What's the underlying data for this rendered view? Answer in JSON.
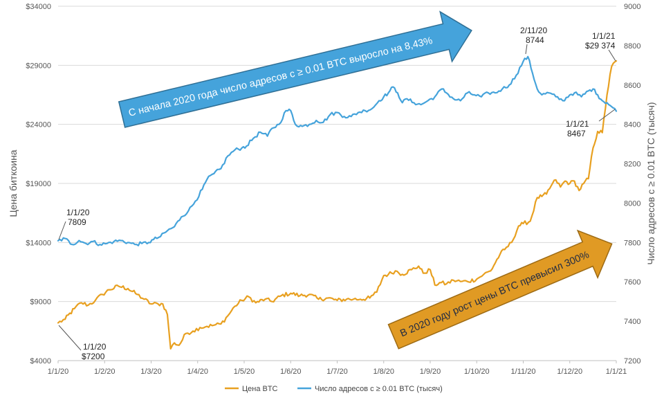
{
  "chart_data": {
    "type": "line",
    "y_left_label": "Цена биткоина",
    "y_right_label": "Число адресов с ≥ 0.01 BTC (тысяч)",
    "y_left_range": [
      4000,
      34000
    ],
    "y_right_range": [
      7200,
      9000
    ],
    "y_left_ticks": [
      "$4000",
      "$9000",
      "$14000",
      "$19000",
      "$24000",
      "$29000",
      "$34000"
    ],
    "y_right_ticks": [
      "7200",
      "7400",
      "7600",
      "7800",
      "8000",
      "8200",
      "8400",
      "8600",
      "8800",
      "9000"
    ],
    "x_ticks": [
      "1/1/20",
      "1/2/20",
      "1/3/20",
      "1/4/20",
      "1/5/20",
      "1/6/20",
      "1/7/20",
      "1/8/20",
      "1/9/20",
      "1/10/20",
      "1/11/20",
      "1/12/20",
      "1/1/21"
    ],
    "series": [
      {
        "name": "Цена BTC",
        "axis": "left",
        "color": "#E8A020",
        "points": [
          [
            0,
            7200
          ],
          [
            0.15,
            7500
          ],
          [
            0.35,
            8400
          ],
          [
            0.5,
            8900
          ],
          [
            0.65,
            8700
          ],
          [
            0.8,
            9100
          ],
          [
            0.95,
            9600
          ],
          [
            1.1,
            10000
          ],
          [
            1.3,
            10300
          ],
          [
            1.5,
            10100
          ],
          [
            1.7,
            9600
          ],
          [
            1.85,
            9200
          ],
          [
            2.0,
            8800
          ],
          [
            2.15,
            8800
          ],
          [
            2.25,
            8800
          ],
          [
            2.35,
            7900
          ],
          [
            2.42,
            5000
          ],
          [
            2.5,
            5500
          ],
          [
            2.6,
            5300
          ],
          [
            2.75,
            6300
          ],
          [
            2.9,
            6500
          ],
          [
            3.05,
            6800
          ],
          [
            3.2,
            6900
          ],
          [
            3.35,
            7000
          ],
          [
            3.5,
            7100
          ],
          [
            3.65,
            7800
          ],
          [
            3.8,
            8600
          ],
          [
            3.95,
            9100
          ],
          [
            4.1,
            9400
          ],
          [
            4.25,
            8900
          ],
          [
            4.45,
            9200
          ],
          [
            4.6,
            9000
          ],
          [
            4.8,
            9500
          ],
          [
            5.0,
            9700
          ],
          [
            5.2,
            9500
          ],
          [
            5.4,
            9600
          ],
          [
            5.6,
            9200
          ],
          [
            5.8,
            9300
          ],
          [
            6.0,
            9100
          ],
          [
            6.2,
            9200
          ],
          [
            6.35,
            9200
          ],
          [
            6.5,
            9200
          ],
          [
            6.7,
            9300
          ],
          [
            6.85,
            9800
          ],
          [
            7.0,
            11200
          ],
          [
            7.1,
            11300
          ],
          [
            7.25,
            11600
          ],
          [
            7.4,
            11300
          ],
          [
            7.6,
            11700
          ],
          [
            7.75,
            12000
          ],
          [
            7.85,
            11400
          ],
          [
            8.0,
            11700
          ],
          [
            8.1,
            10400
          ],
          [
            8.2,
            10600
          ],
          [
            8.35,
            10500
          ],
          [
            8.5,
            10800
          ],
          [
            8.65,
            10700
          ],
          [
            8.8,
            10700
          ],
          [
            9.0,
            10900
          ],
          [
            9.15,
            11300
          ],
          [
            9.3,
            11600
          ],
          [
            9.5,
            13000
          ],
          [
            9.6,
            13400
          ],
          [
            9.75,
            14000
          ],
          [
            9.9,
            15400
          ],
          [
            10.0,
            15600
          ],
          [
            10.15,
            15800
          ],
          [
            10.3,
            17800
          ],
          [
            10.4,
            17900
          ],
          [
            10.5,
            18100
          ],
          [
            10.6,
            18800
          ],
          [
            10.7,
            19300
          ],
          [
            10.8,
            18700
          ],
          [
            10.9,
            19200
          ],
          [
            11.0,
            19000
          ],
          [
            11.1,
            19200
          ],
          [
            11.2,
            18400
          ],
          [
            11.3,
            19000
          ],
          [
            11.4,
            19400
          ],
          [
            11.5,
            22000
          ],
          [
            11.6,
            23400
          ],
          [
            11.7,
            23300
          ],
          [
            11.8,
            26500
          ],
          [
            11.9,
            28900
          ],
          [
            12.0,
            29374
          ]
        ]
      },
      {
        "name": "Число адресов с ≥ 0.01 BTC (тысяч)",
        "axis": "right",
        "color": "#45A3DB",
        "points": [
          [
            0,
            7809
          ],
          [
            0.15,
            7820
          ],
          [
            0.3,
            7790
          ],
          [
            0.45,
            7810
          ],
          [
            0.6,
            7795
          ],
          [
            0.75,
            7805
          ],
          [
            0.9,
            7790
          ],
          [
            1.05,
            7795
          ],
          [
            1.2,
            7805
          ],
          [
            1.35,
            7810
          ],
          [
            1.5,
            7800
          ],
          [
            1.65,
            7790
          ],
          [
            1.8,
            7795
          ],
          [
            1.95,
            7800
          ],
          [
            2.05,
            7815
          ],
          [
            2.2,
            7830
          ],
          [
            2.35,
            7860
          ],
          [
            2.5,
            7880
          ],
          [
            2.65,
            7930
          ],
          [
            2.8,
            7960
          ],
          [
            2.95,
            8010
          ],
          [
            3.1,
            8070
          ],
          [
            3.2,
            8120
          ],
          [
            3.35,
            8150
          ],
          [
            3.5,
            8175
          ],
          [
            3.65,
            8240
          ],
          [
            3.8,
            8270
          ],
          [
            3.95,
            8280
          ],
          [
            4.05,
            8290
          ],
          [
            4.2,
            8330
          ],
          [
            4.35,
            8360
          ],
          [
            4.5,
            8340
          ],
          [
            4.6,
            8380
          ],
          [
            4.75,
            8400
          ],
          [
            4.9,
            8470
          ],
          [
            5.0,
            8470
          ],
          [
            5.1,
            8400
          ],
          [
            5.25,
            8390
          ],
          [
            5.4,
            8400
          ],
          [
            5.55,
            8420
          ],
          [
            5.7,
            8410
          ],
          [
            5.85,
            8450
          ],
          [
            6.0,
            8460
          ],
          [
            6.15,
            8440
          ],
          [
            6.3,
            8440
          ],
          [
            6.45,
            8460
          ],
          [
            6.6,
            8470
          ],
          [
            6.75,
            8480
          ],
          [
            6.9,
            8520
          ],
          [
            7.0,
            8540
          ],
          [
            7.1,
            8560
          ],
          [
            7.2,
            8590
          ],
          [
            7.3,
            8560
          ],
          [
            7.4,
            8510
          ],
          [
            7.5,
            8530
          ],
          [
            7.65,
            8510
          ],
          [
            7.8,
            8500
          ],
          [
            7.95,
            8520
          ],
          [
            8.1,
            8540
          ],
          [
            8.25,
            8580
          ],
          [
            8.35,
            8560
          ],
          [
            8.5,
            8530
          ],
          [
            8.65,
            8520
          ],
          [
            8.8,
            8560
          ],
          [
            8.95,
            8550
          ],
          [
            9.1,
            8540
          ],
          [
            9.25,
            8560
          ],
          [
            9.4,
            8560
          ],
          [
            9.55,
            8580
          ],
          [
            9.7,
            8600
          ],
          [
            9.85,
            8650
          ],
          [
            10.0,
            8720
          ],
          [
            10.1,
            8744
          ],
          [
            10.2,
            8660
          ],
          [
            10.3,
            8580
          ],
          [
            10.4,
            8550
          ],
          [
            10.55,
            8560
          ],
          [
            10.7,
            8540
          ],
          [
            10.85,
            8520
          ],
          [
            11.0,
            8550
          ],
          [
            11.1,
            8560
          ],
          [
            11.25,
            8540
          ],
          [
            11.4,
            8570
          ],
          [
            11.5,
            8580
          ],
          [
            11.6,
            8550
          ],
          [
            11.7,
            8520
          ],
          [
            11.8,
            8510
          ],
          [
            11.9,
            8490
          ],
          [
            12.0,
            8467
          ]
        ]
      }
    ],
    "annotations": {
      "price_start": {
        "date": "1/1/20",
        "value": "$7200"
      },
      "price_end": {
        "date": "1/1/21",
        "value": "$29 374"
      },
      "addr_start": {
        "date": "1/1/20",
        "value": "7809"
      },
      "addr_peak": {
        "date": "2/11/20",
        "value": "8744"
      },
      "addr_end": {
        "date": "1/1/21",
        "value": "8467"
      }
    },
    "callouts": {
      "blue_arrow": "С начала 2020 года число адресов с ≥ 0.01 BTC выросло на  8,43%",
      "orange_arrow": "В 2020 году рост цены BTC превысил 300%"
    },
    "legend": [
      "Цена BTC",
      "Число адресов с ≥ 0.01 BTC (тысяч)"
    ],
    "grid": true
  },
  "colors": {
    "price": "#E8A020",
    "addresses": "#45A3DB",
    "blue_arrow_fill": "#45A3DB",
    "orange_arrow_fill": "#E09A24",
    "grid": "#D9D9D9"
  }
}
